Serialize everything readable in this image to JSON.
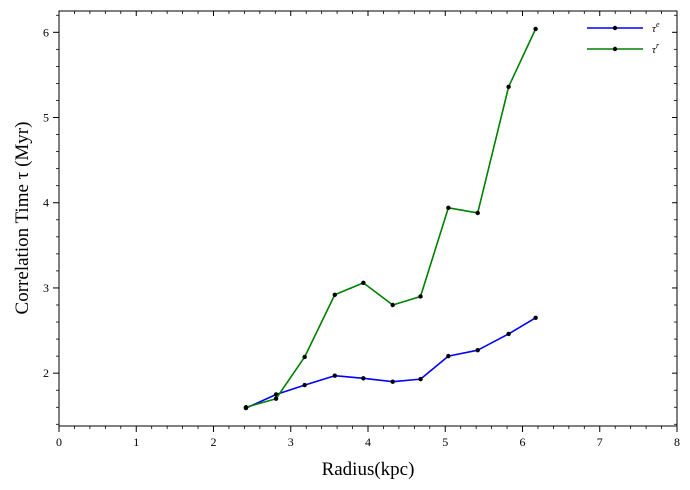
{
  "chart_data": {
    "type": "line",
    "title": "",
    "xlabel": "Radius(kpc)",
    "ylabel": "Correlation Time τ (Myr)",
    "xlim": [
      0,
      8
    ],
    "ylim": [
      1.38,
      6.25
    ],
    "xticks": [
      "0",
      "1",
      "2",
      "3",
      "4",
      "5",
      "6",
      "7",
      "8"
    ],
    "yticks": [
      "2",
      "3",
      "4",
      "5",
      "6"
    ],
    "grid": false,
    "legend_position": "top-right",
    "x": [
      2.42,
      2.81,
      3.18,
      3.57,
      3.94,
      4.32,
      4.68,
      5.04,
      5.42,
      5.82,
      6.17
    ],
    "series": [
      {
        "name": "τ^e",
        "name_base": "τ",
        "name_sup": "e",
        "color": "#0000ff",
        "values": [
          1.59,
          1.75,
          1.86,
          1.97,
          1.94,
          1.9,
          1.93,
          2.2,
          2.27,
          2.46,
          2.65
        ]
      },
      {
        "name": "τ^r",
        "name_base": "τ",
        "name_sup": "r",
        "color": "#008000",
        "values": [
          1.6,
          1.7,
          2.19,
          2.92,
          3.06,
          2.8,
          2.9,
          3.94,
          3.88,
          5.36,
          6.04
        ]
      }
    ]
  }
}
